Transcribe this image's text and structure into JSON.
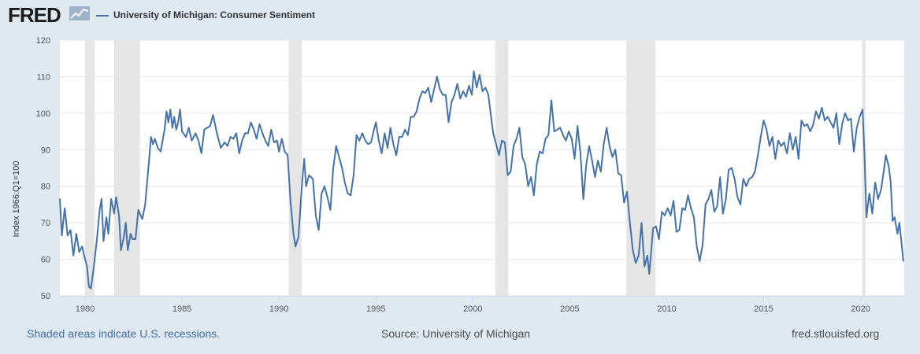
{
  "header": {
    "logo_text": "FRED",
    "legend_label": "University of Michigan: Consumer Sentiment",
    "series_color": "#4572a7"
  },
  "footer": {
    "recession_note": "Shaded areas indicate U.S. recessions.",
    "source": "Source: University of Michigan",
    "site": "fred.stlouisfed.org"
  },
  "chart_data": {
    "type": "line",
    "title": "University of Michigan: Consumer Sentiment",
    "ylabel": "Index 1966:Q1=100",
    "xlabel": "",
    "xlim": [
      1978.7,
      2022.25
    ],
    "ylim": [
      50,
      120
    ],
    "yticks": [
      50,
      60,
      70,
      80,
      90,
      100,
      110,
      120
    ],
    "xticks": [
      1980,
      1985,
      1990,
      1995,
      2000,
      2005,
      2010,
      2015,
      2020
    ],
    "recessions": [
      [
        1980.0,
        1980.5
      ],
      [
        1981.5,
        1982.83
      ],
      [
        1990.5,
        1991.17
      ],
      [
        2001.17,
        2001.83
      ],
      [
        2007.92,
        2009.42
      ],
      [
        2020.08,
        2020.25
      ]
    ],
    "series": [
      {
        "name": "University of Michigan: Consumer Sentiment",
        "points": [
          [
            1978.7,
            76.5
          ],
          [
            1978.8,
            66.5
          ],
          [
            1978.95,
            74
          ],
          [
            1979.1,
            66.5
          ],
          [
            1979.25,
            68
          ],
          [
            1979.4,
            61
          ],
          [
            1979.55,
            67
          ],
          [
            1979.7,
            62
          ],
          [
            1979.85,
            63.5
          ],
          [
            1979.95,
            61
          ],
          [
            1980.1,
            58
          ],
          [
            1980.2,
            52.5
          ],
          [
            1980.3,
            52
          ],
          [
            1980.45,
            58
          ],
          [
            1980.6,
            65
          ],
          [
            1980.75,
            73.5
          ],
          [
            1980.85,
            76.5
          ],
          [
            1980.95,
            65
          ],
          [
            1981.1,
            71.5
          ],
          [
            1981.2,
            67
          ],
          [
            1981.35,
            76.5
          ],
          [
            1981.5,
            72.5
          ],
          [
            1981.6,
            77
          ],
          [
            1981.75,
            72
          ],
          [
            1981.85,
            62.5
          ],
          [
            1982.0,
            66
          ],
          [
            1982.1,
            70
          ],
          [
            1982.2,
            62.5
          ],
          [
            1982.35,
            67
          ],
          [
            1982.45,
            65.5
          ],
          [
            1982.6,
            65.5
          ],
          [
            1982.75,
            73.5
          ],
          [
            1982.95,
            71
          ],
          [
            1983.1,
            75
          ],
          [
            1983.3,
            87
          ],
          [
            1983.4,
            93.5
          ],
          [
            1983.5,
            91.5
          ],
          [
            1983.6,
            93
          ],
          [
            1983.75,
            90.5
          ],
          [
            1983.9,
            89.5
          ],
          [
            1984.1,
            95.5
          ],
          [
            1984.2,
            100.5
          ],
          [
            1984.3,
            97.5
          ],
          [
            1984.4,
            101
          ],
          [
            1984.5,
            96
          ],
          [
            1984.6,
            99
          ],
          [
            1984.7,
            95.5
          ],
          [
            1984.8,
            97.5
          ],
          [
            1984.9,
            101
          ],
          [
            1985.0,
            95
          ],
          [
            1985.2,
            93.5
          ],
          [
            1985.35,
            96
          ],
          [
            1985.5,
            92.5
          ],
          [
            1985.7,
            94.5
          ],
          [
            1985.85,
            92.5
          ],
          [
            1986.0,
            89
          ],
          [
            1986.15,
            95.5
          ],
          [
            1986.3,
            96
          ],
          [
            1986.45,
            96.5
          ],
          [
            1986.6,
            99.5
          ],
          [
            1986.8,
            94.5
          ],
          [
            1986.9,
            92.5
          ],
          [
            1987.0,
            90.5
          ],
          [
            1987.2,
            92
          ],
          [
            1987.35,
            91
          ],
          [
            1987.5,
            93.5
          ],
          [
            1987.65,
            93
          ],
          [
            1987.8,
            94.5
          ],
          [
            1987.95,
            89
          ],
          [
            1988.1,
            92.5
          ],
          [
            1988.25,
            94.5
          ],
          [
            1988.4,
            94.5
          ],
          [
            1988.55,
            97.5
          ],
          [
            1988.7,
            95.5
          ],
          [
            1988.85,
            93
          ],
          [
            1989.0,
            97
          ],
          [
            1989.15,
            94.5
          ],
          [
            1989.3,
            92.5
          ],
          [
            1989.45,
            91
          ],
          [
            1989.6,
            95.5
          ],
          [
            1989.75,
            92
          ],
          [
            1989.9,
            92.5
          ],
          [
            1990.0,
            89.5
          ],
          [
            1990.15,
            93
          ],
          [
            1990.3,
            89.5
          ],
          [
            1990.45,
            88.5
          ],
          [
            1990.6,
            75.5
          ],
          [
            1990.75,
            67
          ],
          [
            1990.85,
            63.5
          ],
          [
            1991.0,
            66
          ],
          [
            1991.2,
            81.5
          ],
          [
            1991.3,
            87.5
          ],
          [
            1991.4,
            80
          ],
          [
            1991.55,
            83
          ],
          [
            1991.75,
            82
          ],
          [
            1991.9,
            72
          ],
          [
            1992.05,
            68
          ],
          [
            1992.2,
            78
          ],
          [
            1992.35,
            80
          ],
          [
            1992.5,
            77
          ],
          [
            1992.65,
            73.5
          ],
          [
            1992.8,
            85
          ],
          [
            1992.95,
            91
          ],
          [
            1993.1,
            88
          ],
          [
            1993.25,
            85
          ],
          [
            1993.4,
            81
          ],
          [
            1993.55,
            78
          ],
          [
            1993.7,
            77.5
          ],
          [
            1993.85,
            83
          ],
          [
            1994.0,
            94
          ],
          [
            1994.15,
            92.5
          ],
          [
            1994.3,
            94.5
          ],
          [
            1994.45,
            92.5
          ],
          [
            1994.6,
            91.5
          ],
          [
            1994.75,
            92
          ],
          [
            1994.9,
            95.5
          ],
          [
            1995.0,
            97.5
          ],
          [
            1995.15,
            92.5
          ],
          [
            1995.3,
            89
          ],
          [
            1995.45,
            94.5
          ],
          [
            1995.6,
            90.5
          ],
          [
            1995.75,
            96
          ],
          [
            1995.9,
            91.5
          ],
          [
            1996.05,
            88.5
          ],
          [
            1996.2,
            93.5
          ],
          [
            1996.35,
            93.5
          ],
          [
            1996.5,
            95.5
          ],
          [
            1996.65,
            94
          ],
          [
            1996.8,
            99
          ],
          [
            1996.95,
            99
          ],
          [
            1997.1,
            100.5
          ],
          [
            1997.25,
            104
          ],
          [
            1997.4,
            106
          ],
          [
            1997.55,
            105.5
          ],
          [
            1997.7,
            107
          ],
          [
            1997.85,
            103
          ],
          [
            1998.0,
            106.5
          ],
          [
            1998.15,
            110
          ],
          [
            1998.3,
            106.5
          ],
          [
            1998.45,
            105
          ],
          [
            1998.6,
            105
          ],
          [
            1998.75,
            97.5
          ],
          [
            1998.9,
            103
          ],
          [
            1999.05,
            105
          ],
          [
            1999.2,
            108
          ],
          [
            1999.35,
            104
          ],
          [
            1999.5,
            106
          ],
          [
            1999.65,
            104.5
          ],
          [
            1999.8,
            107.5
          ],
          [
            1999.95,
            105
          ],
          [
            2000.05,
            111.5
          ],
          [
            2000.2,
            107
          ],
          [
            2000.35,
            110.5
          ],
          [
            2000.5,
            106
          ],
          [
            2000.65,
            107
          ],
          [
            2000.8,
            105
          ],
          [
            2000.95,
            98.5
          ],
          [
            2001.05,
            94.5
          ],
          [
            2001.2,
            91.5
          ],
          [
            2001.35,
            88.5
          ],
          [
            2001.5,
            92.5
          ],
          [
            2001.65,
            92
          ],
          [
            2001.8,
            83
          ],
          [
            2001.95,
            84
          ],
          [
            2002.1,
            91
          ],
          [
            2002.25,
            93
          ],
          [
            2002.4,
            96
          ],
          [
            2002.55,
            88
          ],
          [
            2002.7,
            86
          ],
          [
            2002.85,
            80
          ],
          [
            2003.0,
            82.5
          ],
          [
            2003.15,
            77.5
          ],
          [
            2003.3,
            86
          ],
          [
            2003.45,
            89.5
          ],
          [
            2003.6,
            89
          ],
          [
            2003.75,
            93
          ],
          [
            2003.9,
            94
          ],
          [
            2004.05,
            103.5
          ],
          [
            2004.2,
            95
          ],
          [
            2004.35,
            95.5
          ],
          [
            2004.5,
            96
          ],
          [
            2004.65,
            94
          ],
          [
            2004.8,
            92.5
          ],
          [
            2004.95,
            95
          ],
          [
            2005.1,
            93
          ],
          [
            2005.25,
            87.5
          ],
          [
            2005.4,
            96.5
          ],
          [
            2005.55,
            89
          ],
          [
            2005.7,
            76.5
          ],
          [
            2005.85,
            86
          ],
          [
            2006.0,
            91
          ],
          [
            2006.15,
            87
          ],
          [
            2006.3,
            82.5
          ],
          [
            2006.45,
            87
          ],
          [
            2006.6,
            84
          ],
          [
            2006.75,
            91.5
          ],
          [
            2006.9,
            96
          ],
          [
            2007.05,
            91
          ],
          [
            2007.2,
            88
          ],
          [
            2007.35,
            90
          ],
          [
            2007.5,
            83.5
          ],
          [
            2007.65,
            83
          ],
          [
            2007.8,
            75.5
          ],
          [
            2007.95,
            78.5
          ],
          [
            2008.1,
            70
          ],
          [
            2008.25,
            62.5
          ],
          [
            2008.4,
            59
          ],
          [
            2008.55,
            61
          ],
          [
            2008.7,
            70
          ],
          [
            2008.85,
            58
          ],
          [
            2009.0,
            61
          ],
          [
            2009.1,
            56
          ],
          [
            2009.3,
            68.5
          ],
          [
            2009.45,
            69
          ],
          [
            2009.6,
            65.5
          ],
          [
            2009.75,
            73
          ],
          [
            2009.9,
            72
          ],
          [
            2010.05,
            74
          ],
          [
            2010.2,
            72
          ],
          [
            2010.35,
            76
          ],
          [
            2010.5,
            67.5
          ],
          [
            2010.65,
            68
          ],
          [
            2010.8,
            74
          ],
          [
            2010.95,
            73.5
          ],
          [
            2011.1,
            77.5
          ],
          [
            2011.25,
            74
          ],
          [
            2011.4,
            71.5
          ],
          [
            2011.55,
            63.5
          ],
          [
            2011.7,
            59.5
          ],
          [
            2011.85,
            64
          ],
          [
            2012.0,
            75
          ],
          [
            2012.15,
            76.5
          ],
          [
            2012.3,
            79
          ],
          [
            2012.45,
            73
          ],
          [
            2012.6,
            74.5
          ],
          [
            2012.75,
            82.5
          ],
          [
            2012.9,
            72.5
          ],
          [
            2013.05,
            76.5
          ],
          [
            2013.2,
            84.5
          ],
          [
            2013.35,
            85
          ],
          [
            2013.5,
            82
          ],
          [
            2013.65,
            77
          ],
          [
            2013.8,
            75
          ],
          [
            2013.95,
            82
          ],
          [
            2014.1,
            80
          ],
          [
            2014.25,
            82
          ],
          [
            2014.4,
            82.5
          ],
          [
            2014.55,
            84
          ],
          [
            2014.7,
            88.5
          ],
          [
            2014.85,
            93.5
          ],
          [
            2015.0,
            98
          ],
          [
            2015.15,
            95.5
          ],
          [
            2015.3,
            91
          ],
          [
            2015.45,
            93.5
          ],
          [
            2015.6,
            87.5
          ],
          [
            2015.75,
            92.5
          ],
          [
            2015.9,
            91
          ],
          [
            2016.05,
            92
          ],
          [
            2016.2,
            89
          ],
          [
            2016.35,
            94.5
          ],
          [
            2016.5,
            90
          ],
          [
            2016.65,
            93.5
          ],
          [
            2016.8,
            87.5
          ],
          [
            2016.95,
            98
          ],
          [
            2017.1,
            96.5
          ],
          [
            2017.25,
            97
          ],
          [
            2017.4,
            95
          ],
          [
            2017.55,
            96.8
          ],
          [
            2017.7,
            100.5
          ],
          [
            2017.85,
            98.5
          ],
          [
            2018.0,
            101.5
          ],
          [
            2018.15,
            98
          ],
          [
            2018.3,
            99
          ],
          [
            2018.45,
            97.5
          ],
          [
            2018.6,
            96
          ],
          [
            2018.75,
            100
          ],
          [
            2018.9,
            91.5
          ],
          [
            2019.05,
            97
          ],
          [
            2019.2,
            100
          ],
          [
            2019.35,
            98
          ],
          [
            2019.5,
            98.5
          ],
          [
            2019.65,
            89.5
          ],
          [
            2019.8,
            96
          ],
          [
            2019.95,
            99
          ],
          [
            2020.1,
            101
          ],
          [
            2020.2,
            89
          ],
          [
            2020.3,
            71.5
          ],
          [
            2020.45,
            78
          ],
          [
            2020.6,
            72.5
          ],
          [
            2020.75,
            81
          ],
          [
            2020.9,
            76.5
          ],
          [
            2021.05,
            79
          ],
          [
            2021.2,
            84.5
          ],
          [
            2021.3,
            88.5
          ],
          [
            2021.45,
            85.5
          ],
          [
            2021.55,
            81
          ],
          [
            2021.65,
            70.5
          ],
          [
            2021.75,
            71.5
          ],
          [
            2021.9,
            67
          ],
          [
            2022.0,
            70
          ],
          [
            2022.1,
            65
          ],
          [
            2022.2,
            59.5
          ]
        ]
      }
    ]
  }
}
